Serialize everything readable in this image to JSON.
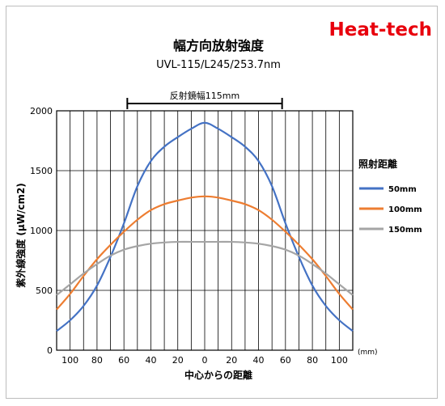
{
  "brand": {
    "text": "Heat-tech",
    "color": "#e8000d"
  },
  "chart_data": {
    "type": "line",
    "title": "幅方向放射強度",
    "subtitle": "UVL-115/L245/253.7nm",
    "annotation": {
      "text": "反射鏡幅115mm",
      "x_from": -57.5,
      "x_to": 57.5
    },
    "xlabel": "中心からの距離",
    "x_unit": "(mm)",
    "ylabel": "紫外線強度 (μW/cm2)",
    "xlim": [
      -110,
      110
    ],
    "ylim": [
      0,
      2000
    ],
    "x_ticks": [
      -100,
      -80,
      -60,
      -40,
      -20,
      0,
      20,
      40,
      60,
      80,
      100
    ],
    "x_tick_labels": [
      "100",
      "80",
      "60",
      "40",
      "20",
      "0",
      "20",
      "40",
      "60",
      "80",
      "100"
    ],
    "y_ticks": [
      0,
      500,
      1000,
      1500,
      2000
    ],
    "grid": "on",
    "legend_title": "照射距離",
    "legend_position": "right",
    "x": [
      -110,
      -100,
      -90,
      -80,
      -70,
      -60,
      -50,
      -40,
      -30,
      -20,
      -10,
      0,
      10,
      20,
      30,
      40,
      50,
      60,
      70,
      80,
      90,
      100,
      110
    ],
    "series": [
      {
        "name": "50mm",
        "color": "#4472c4",
        "values": [
          160,
          250,
          370,
          540,
          780,
          1060,
          1370,
          1580,
          1700,
          1780,
          1850,
          1900,
          1850,
          1780,
          1700,
          1580,
          1370,
          1060,
          780,
          540,
          370,
          250,
          160
        ]
      },
      {
        "name": "100mm",
        "color": "#ed7d31",
        "values": [
          340,
          470,
          620,
          760,
          880,
          990,
          1090,
          1170,
          1220,
          1250,
          1275,
          1285,
          1275,
          1250,
          1220,
          1170,
          1090,
          990,
          880,
          760,
          620,
          470,
          340
        ]
      },
      {
        "name": "150mm",
        "color": "#a5a5a5",
        "values": [
          460,
          550,
          640,
          720,
          790,
          840,
          870,
          890,
          900,
          905,
          905,
          905,
          905,
          905,
          900,
          890,
          870,
          840,
          790,
          720,
          640,
          550,
          460
        ]
      }
    ]
  }
}
